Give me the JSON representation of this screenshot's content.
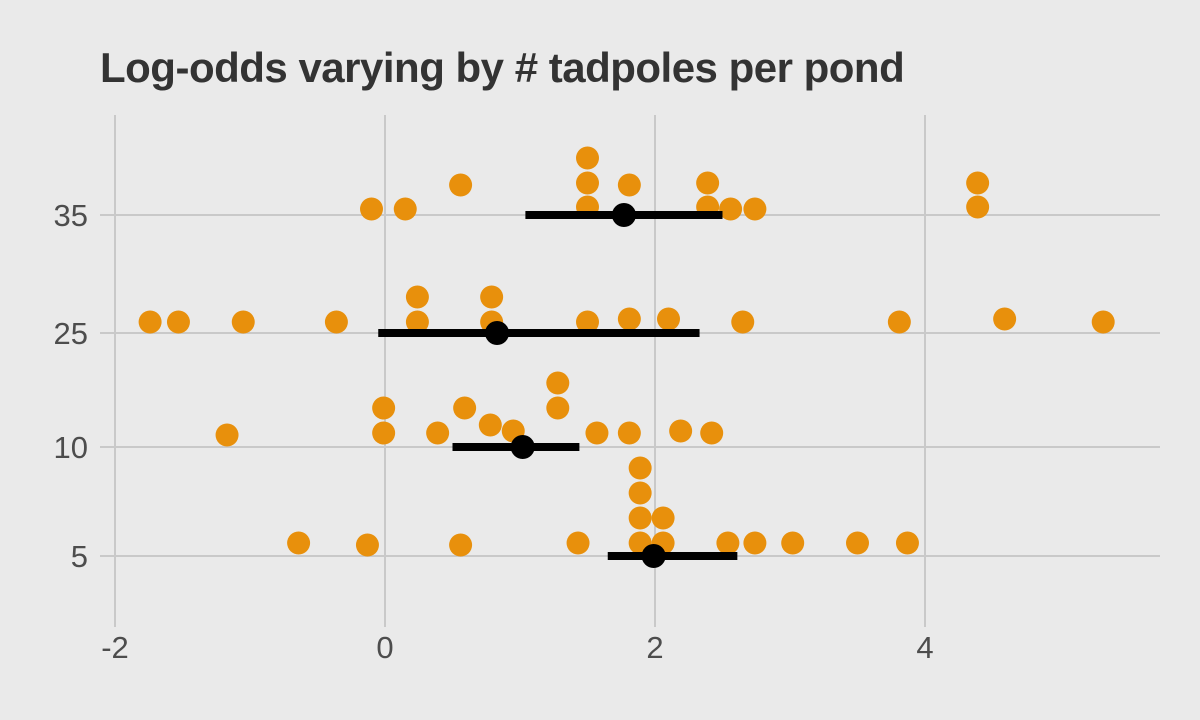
{
  "chart_data": {
    "type": "scatter",
    "title": "Log-odds varying by # tadpoles per pond",
    "xlabel": "",
    "ylabel": "",
    "legend": "none",
    "grid": true,
    "xlim": [
      -2.15,
      5.8
    ],
    "x_ticks": [
      {
        "value": -2,
        "label": "-2"
      },
      {
        "value": 0,
        "label": "0"
      },
      {
        "value": 2,
        "label": "2"
      },
      {
        "value": 4,
        "label": "4"
      }
    ],
    "colors": {
      "background": "#EAEAEA",
      "gridline": "#C9C9C9",
      "point": "#E8900C",
      "interval": "#000000",
      "title": "#333333",
      "axis_text": "#4D4D4D"
    },
    "rows": [
      {
        "label": "35",
        "tadpoles": 35,
        "points": [
          {
            "x": -0.1,
            "dy": 6
          },
          {
            "x": 0.15,
            "dy": 6
          },
          {
            "x": 0.56,
            "dy": 30
          },
          {
            "x": 1.5,
            "dy": 8
          },
          {
            "x": 1.5,
            "dy": 32
          },
          {
            "x": 1.5,
            "dy": 57
          },
          {
            "x": 1.81,
            "dy": 30
          },
          {
            "x": 2.39,
            "dy": 8
          },
          {
            "x": 2.39,
            "dy": 32
          },
          {
            "x": 2.56,
            "dy": 6
          },
          {
            "x": 2.74,
            "dy": 6
          },
          {
            "x": 4.39,
            "dy": 8
          },
          {
            "x": 4.39,
            "dy": 32
          }
        ],
        "interval": {
          "lower": 1.04,
          "center": 1.77,
          "upper": 2.5
        }
      },
      {
        "label": "25",
        "tadpoles": 25,
        "points": [
          {
            "x": -1.74,
            "dy": 11
          },
          {
            "x": -1.53,
            "dy": 11
          },
          {
            "x": -1.05,
            "dy": 11
          },
          {
            "x": -0.36,
            "dy": 11
          },
          {
            "x": 0.24,
            "dy": 11
          },
          {
            "x": 0.24,
            "dy": 36
          },
          {
            "x": 0.79,
            "dy": 11
          },
          {
            "x": 0.79,
            "dy": 36
          },
          {
            "x": 1.5,
            "dy": 11
          },
          {
            "x": 1.81,
            "dy": 14
          },
          {
            "x": 2.1,
            "dy": 14
          },
          {
            "x": 2.65,
            "dy": 11
          },
          {
            "x": 3.81,
            "dy": 11
          },
          {
            "x": 4.59,
            "dy": 14
          },
          {
            "x": 5.32,
            "dy": 11
          }
        ],
        "interval": {
          "lower": -0.05,
          "center": 0.83,
          "upper": 2.33
        }
      },
      {
        "label": "10",
        "tadpoles": 10,
        "points": [
          {
            "x": -1.17,
            "dy": 12
          },
          {
            "x": -0.01,
            "dy": 14
          },
          {
            "x": -0.01,
            "dy": 39
          },
          {
            "x": 0.39,
            "dy": 14
          },
          {
            "x": 0.59,
            "dy": 39
          },
          {
            "x": 0.78,
            "dy": 22
          },
          {
            "x": 0.95,
            "dy": 16
          },
          {
            "x": 1.28,
            "dy": 39
          },
          {
            "x": 1.28,
            "dy": 64
          },
          {
            "x": 1.57,
            "dy": 14
          },
          {
            "x": 1.81,
            "dy": 14
          },
          {
            "x": 2.19,
            "dy": 16
          },
          {
            "x": 2.42,
            "dy": 14
          }
        ],
        "interval": {
          "lower": 0.5,
          "center": 1.02,
          "upper": 1.44
        }
      },
      {
        "label": "5",
        "tadpoles": 5,
        "points": [
          {
            "x": -0.64,
            "dy": 13
          },
          {
            "x": -0.13,
            "dy": 11
          },
          {
            "x": 0.56,
            "dy": 11
          },
          {
            "x": 1.43,
            "dy": 13
          },
          {
            "x": 1.89,
            "dy": 13
          },
          {
            "x": 1.89,
            "dy": 38
          },
          {
            "x": 1.89,
            "dy": 63
          },
          {
            "x": 1.89,
            "dy": 88
          },
          {
            "x": 2.06,
            "dy": 13
          },
          {
            "x": 2.06,
            "dy": 38
          },
          {
            "x": 2.54,
            "dy": 13
          },
          {
            "x": 2.74,
            "dy": 13
          },
          {
            "x": 3.02,
            "dy": 13
          },
          {
            "x": 3.5,
            "dy": 13
          },
          {
            "x": 3.87,
            "dy": 13
          }
        ],
        "interval": {
          "lower": 1.65,
          "center": 1.99,
          "upper": 2.61
        }
      }
    ]
  }
}
